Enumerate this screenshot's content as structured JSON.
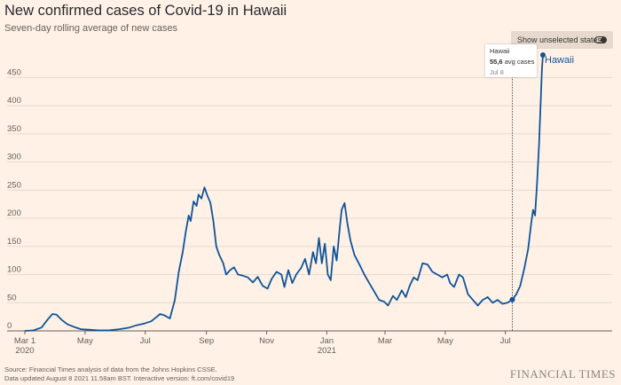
{
  "header": {
    "title": "New confirmed cases of Covid-19 in Hawaii",
    "subtitle": "Seven-day rolling average of new cases"
  },
  "toggle": {
    "label": "Show unselected states",
    "state": "on"
  },
  "tooltip": {
    "name": "Hawaii",
    "value_bold": "55,6",
    "value_suffix": " avg cases",
    "date": "Jul 8"
  },
  "footer": {
    "source_line1": "Source: Financial Times analysis of data from the Johns Hopkins CSSE.",
    "source_line2": "Data updated August 8 2021 11.58am BST. Interactive version: ft.com/covid19",
    "brand": "FINANCIAL TIMES"
  },
  "colors": {
    "background": "#fff1e5",
    "line": "#0f5499",
    "grid": "#e6d9ce",
    "text": "#66605c"
  },
  "chart_data": {
    "type": "line",
    "title": "New confirmed cases of Covid-19 in Hawaii",
    "subtitle": "Seven-day rolling average of new cases",
    "xlabel": "",
    "ylabel": "",
    "ylim": [
      0,
      490
    ],
    "xlim": [
      "2020-03-01",
      "2021-08-08"
    ],
    "yticks": [
      0,
      50,
      100,
      150,
      200,
      250,
      300,
      350,
      400,
      450
    ],
    "xticks": [
      {
        "date": "2020-03-01",
        "label": "Mar 1",
        "sublabel": "2020"
      },
      {
        "date": "2020-05-01",
        "label": "May",
        "sublabel": ""
      },
      {
        "date": "2020-07-01",
        "label": "Jul",
        "sublabel": ""
      },
      {
        "date": "2020-09-01",
        "label": "Sep",
        "sublabel": ""
      },
      {
        "date": "2020-11-01",
        "label": "Nov",
        "sublabel": ""
      },
      {
        "date": "2021-01-01",
        "label": "Jan",
        "sublabel": "2021"
      },
      {
        "date": "2021-03-01",
        "label": "Mar",
        "sublabel": ""
      },
      {
        "date": "2021-05-01",
        "label": "May",
        "sublabel": ""
      },
      {
        "date": "2021-07-01",
        "label": "Jul",
        "sublabel": ""
      }
    ],
    "grid": true,
    "legend": "inline-end-label",
    "highlight": {
      "x": "2021-07-08",
      "y": 55.6
    },
    "series": [
      {
        "name": "Hawaii",
        "color": "#0f5499",
        "points": [
          [
            "2020-03-01",
            0
          ],
          [
            "2020-03-10",
            1
          ],
          [
            "2020-03-18",
            6
          ],
          [
            "2020-03-24",
            20
          ],
          [
            "2020-03-29",
            30
          ],
          [
            "2020-04-02",
            29
          ],
          [
            "2020-04-07",
            20
          ],
          [
            "2020-04-13",
            12
          ],
          [
            "2020-04-20",
            7
          ],
          [
            "2020-04-27",
            3
          ],
          [
            "2020-05-05",
            2
          ],
          [
            "2020-05-15",
            1
          ],
          [
            "2020-05-25",
            1
          ],
          [
            "2020-06-05",
            3
          ],
          [
            "2020-06-15",
            6
          ],
          [
            "2020-06-22",
            10
          ],
          [
            "2020-06-30",
            13
          ],
          [
            "2020-07-07",
            17
          ],
          [
            "2020-07-12",
            24
          ],
          [
            "2020-07-16",
            30
          ],
          [
            "2020-07-20",
            28
          ],
          [
            "2020-07-26",
            22
          ],
          [
            "2020-07-31",
            55
          ],
          [
            "2020-08-04",
            105
          ],
          [
            "2020-08-08",
            140
          ],
          [
            "2020-08-11",
            175
          ],
          [
            "2020-08-14",
            205
          ],
          [
            "2020-08-16",
            195
          ],
          [
            "2020-08-19",
            230
          ],
          [
            "2020-08-22",
            222
          ],
          [
            "2020-08-24",
            242
          ],
          [
            "2020-08-27",
            235
          ],
          [
            "2020-08-30",
            255
          ],
          [
            "2020-09-02",
            240
          ],
          [
            "2020-09-05",
            228
          ],
          [
            "2020-09-08",
            195
          ],
          [
            "2020-09-11",
            150
          ],
          [
            "2020-09-14",
            135
          ],
          [
            "2020-09-18",
            120
          ],
          [
            "2020-09-21",
            100
          ],
          [
            "2020-09-25",
            108
          ],
          [
            "2020-09-29",
            113
          ],
          [
            "2020-10-03",
            100
          ],
          [
            "2020-10-08",
            98
          ],
          [
            "2020-10-13",
            95
          ],
          [
            "2020-10-18",
            86
          ],
          [
            "2020-10-23",
            96
          ],
          [
            "2020-10-28",
            80
          ],
          [
            "2020-11-02",
            75
          ],
          [
            "2020-11-06",
            92
          ],
          [
            "2020-11-11",
            105
          ],
          [
            "2020-11-16",
            100
          ],
          [
            "2020-11-19",
            78
          ],
          [
            "2020-11-23",
            108
          ],
          [
            "2020-11-27",
            85
          ],
          [
            "2020-12-01",
            100
          ],
          [
            "2020-12-06",
            112
          ],
          [
            "2020-12-10",
            128
          ],
          [
            "2020-12-14",
            100
          ],
          [
            "2020-12-18",
            140
          ],
          [
            "2020-12-21",
            120
          ],
          [
            "2020-12-24",
            165
          ],
          [
            "2020-12-27",
            120
          ],
          [
            "2020-12-30",
            155
          ],
          [
            "2021-01-02",
            100
          ],
          [
            "2021-01-05",
            90
          ],
          [
            "2021-01-08",
            150
          ],
          [
            "2021-01-11",
            125
          ],
          [
            "2021-01-14",
            180
          ],
          [
            "2021-01-16",
            215
          ],
          [
            "2021-01-19",
            227
          ],
          [
            "2021-01-22",
            190
          ],
          [
            "2021-01-25",
            160
          ],
          [
            "2021-01-29",
            135
          ],
          [
            "2021-02-03",
            118
          ],
          [
            "2021-02-08",
            100
          ],
          [
            "2021-02-13",
            85
          ],
          [
            "2021-02-18",
            70
          ],
          [
            "2021-02-23",
            55
          ],
          [
            "2021-02-28",
            52
          ],
          [
            "2021-03-04",
            45
          ],
          [
            "2021-03-09",
            62
          ],
          [
            "2021-03-13",
            55
          ],
          [
            "2021-03-18",
            72
          ],
          [
            "2021-03-22",
            60
          ],
          [
            "2021-03-26",
            80
          ],
          [
            "2021-03-30",
            95
          ],
          [
            "2021-04-03",
            90
          ],
          [
            "2021-04-08",
            120
          ],
          [
            "2021-04-13",
            118
          ],
          [
            "2021-04-18",
            105
          ],
          [
            "2021-04-23",
            100
          ],
          [
            "2021-04-28",
            95
          ],
          [
            "2021-05-03",
            100
          ],
          [
            "2021-05-06",
            85
          ],
          [
            "2021-05-10",
            78
          ],
          [
            "2021-05-15",
            100
          ],
          [
            "2021-05-19",
            95
          ],
          [
            "2021-05-24",
            65
          ],
          [
            "2021-05-29",
            55
          ],
          [
            "2021-06-03",
            45
          ],
          [
            "2021-06-08",
            55
          ],
          [
            "2021-06-13",
            60
          ],
          [
            "2021-06-18",
            50
          ],
          [
            "2021-06-23",
            55
          ],
          [
            "2021-06-28",
            48
          ],
          [
            "2021-07-03",
            50
          ],
          [
            "2021-07-08",
            55.6
          ],
          [
            "2021-07-12",
            65
          ],
          [
            "2021-07-16",
            80
          ],
          [
            "2021-07-20",
            110
          ],
          [
            "2021-07-24",
            145
          ],
          [
            "2021-07-27",
            190
          ],
          [
            "2021-07-29",
            215
          ],
          [
            "2021-07-31",
            205
          ],
          [
            "2021-08-02",
            260
          ],
          [
            "2021-08-04",
            330
          ],
          [
            "2021-08-06",
            420
          ],
          [
            "2021-08-07",
            465
          ],
          [
            "2021-08-08",
            490
          ]
        ]
      }
    ]
  }
}
